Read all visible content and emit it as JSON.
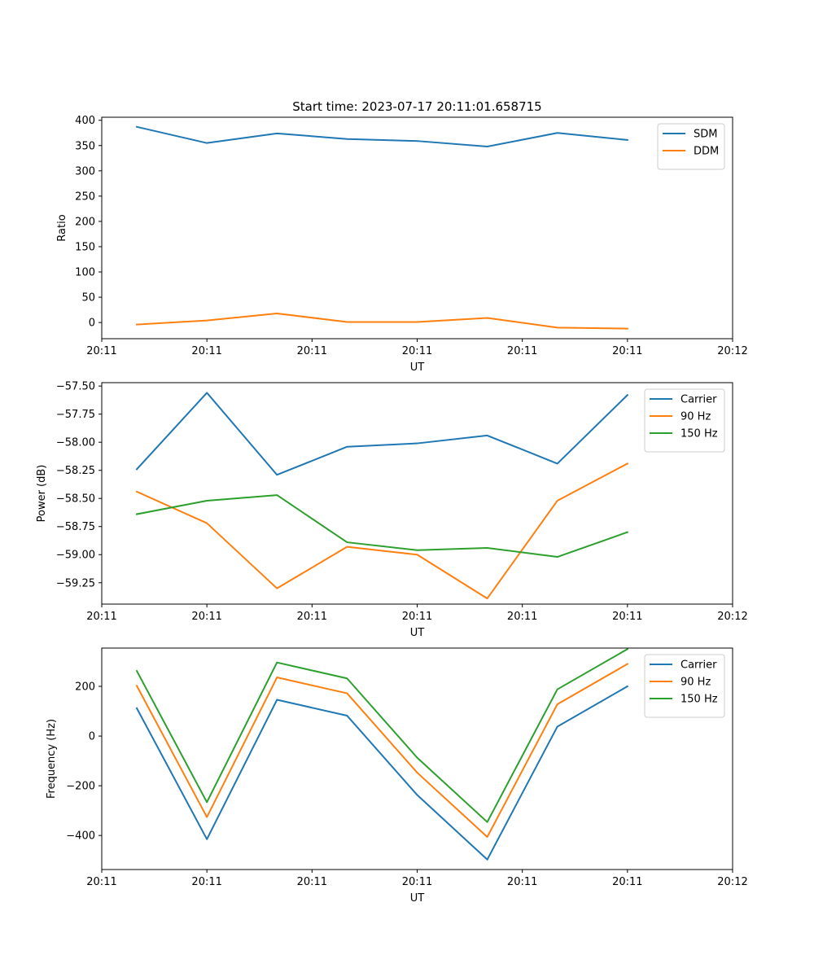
{
  "chart_data": [
    {
      "type": "line",
      "title": "Start time: 2023-07-17 20:11:01.658715",
      "xlabel": "UT",
      "ylabel": "Ratio",
      "xlim": [
        0,
        9
      ],
      "x": [
        0.5,
        1.5,
        2.5,
        3.5,
        4.5,
        5.5,
        6.5,
        7.5
      ],
      "xticks": [
        0,
        1.5,
        3,
        4.5,
        6,
        7.5,
        9
      ],
      "xtick_labels": [
        "20:11",
        "20:11",
        "20:11",
        "20:11",
        "20:11",
        "20:11",
        "20:12"
      ],
      "ylim": [
        -32,
        406
      ],
      "yticks": [
        0,
        50,
        100,
        150,
        200,
        250,
        300,
        350,
        400
      ],
      "ytick_labels": [
        "0",
        "50",
        "100",
        "150",
        "200",
        "250",
        "300",
        "350",
        "400"
      ],
      "legend_position": "top-right",
      "series": [
        {
          "name": "SDM",
          "color": "#1f77b4",
          "values": [
            387,
            355,
            374,
            363,
            359,
            348,
            375,
            361
          ]
        },
        {
          "name": "DDM",
          "color": "#ff7f0e",
          "values": [
            -4,
            4,
            18,
            1,
            1,
            9,
            -10,
            -12
          ]
        }
      ]
    },
    {
      "type": "line",
      "title": "",
      "xlabel": "UT",
      "ylabel": "Power (dB)",
      "xlim": [
        0,
        9
      ],
      "x": [
        0.5,
        1.5,
        2.5,
        3.5,
        4.5,
        5.5,
        6.5,
        7.5
      ],
      "xticks": [
        0,
        1.5,
        3,
        4.5,
        6,
        7.5,
        9
      ],
      "xtick_labels": [
        "20:11",
        "20:11",
        "20:11",
        "20:11",
        "20:11",
        "20:11",
        "20:12"
      ],
      "ylim": [
        -59.44,
        -57.47
      ],
      "yticks": [
        -59.25,
        -59.0,
        -58.75,
        -58.5,
        -58.25,
        -58.0,
        -57.75,
        -57.5
      ],
      "ytick_labels": [
        "−59.25",
        "−59.00",
        "−58.75",
        "−58.50",
        "−58.25",
        "−58.00",
        "−57.75",
        "−57.50"
      ],
      "legend_position": "top-right",
      "series": [
        {
          "name": "Carrier",
          "color": "#1f77b4",
          "values": [
            -58.24,
            -57.56,
            -58.29,
            -58.04,
            -58.01,
            -57.94,
            -58.19,
            -57.58
          ]
        },
        {
          "name": "90 Hz",
          "color": "#ff7f0e",
          "values": [
            -58.44,
            -58.72,
            -59.3,
            -58.93,
            -59.0,
            -59.39,
            -58.52,
            -58.19
          ]
        },
        {
          "name": "150 Hz",
          "color": "#2ca02c",
          "values": [
            -58.64,
            -58.52,
            -58.47,
            -58.89,
            -58.96,
            -58.94,
            -59.02,
            -58.8
          ]
        }
      ]
    },
    {
      "type": "line",
      "title": "",
      "xlabel": "UT",
      "ylabel": "Frequency (Hz)",
      "xlim": [
        0,
        9
      ],
      "x": [
        0.5,
        1.5,
        2.5,
        3.5,
        4.5,
        5.5,
        6.5,
        7.5
      ],
      "xticks": [
        0,
        1.5,
        3,
        4.5,
        6,
        7.5,
        9
      ],
      "xtick_labels": [
        "20:11",
        "20:11",
        "20:11",
        "20:11",
        "20:11",
        "20:11",
        "20:12"
      ],
      "ylim": [
        -537,
        354
      ],
      "yticks": [
        -400,
        -200,
        0,
        200
      ],
      "ytick_labels": [
        "−400",
        "−200",
        "0",
        "200"
      ],
      "legend_position": "top-right",
      "series": [
        {
          "name": "Carrier",
          "color": "#1f77b4",
          "values": [
            112,
            -415,
            146,
            82,
            -237,
            -497,
            38,
            200
          ]
        },
        {
          "name": "90 Hz",
          "color": "#ff7f0e",
          "values": [
            202,
            -326,
            236,
            172,
            -147,
            -406,
            128,
            290
          ]
        },
        {
          "name": "150 Hz",
          "color": "#2ca02c",
          "values": [
            262,
            -266,
            296,
            232,
            -87,
            -346,
            188,
            350
          ]
        }
      ]
    }
  ]
}
